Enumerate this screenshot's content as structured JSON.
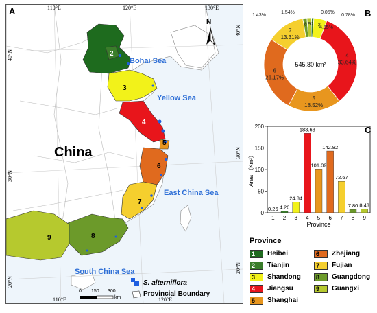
{
  "map": {
    "panel_label": "A",
    "lon_labels": [
      "110°E",
      "120°E",
      "130°E",
      "110°E",
      "120°E"
    ],
    "lat_labels": [
      "40°N",
      "30°N",
      "20°N",
      "40°N",
      "30°N",
      "20°N"
    ],
    "seas": [
      "Bohai Sea",
      "Yellow Sea",
      "East China Sea",
      "South China Sea"
    ],
    "country": "China",
    "north_label": "N",
    "scale": {
      "ticks": [
        "0",
        "150",
        "300"
      ],
      "unit": "km"
    },
    "legend": {
      "species": "S. alterniflora",
      "boundary": "Provincial Boundary"
    },
    "province_numbers": [
      "1",
      "2",
      "3",
      "4",
      "5",
      "6",
      "7",
      "8",
      "9"
    ],
    "colors": {
      "heibei": "#1e6b1e",
      "tianjin": "#3a7d2a",
      "shandong": "#f2f21a",
      "jiangsu": "#e8151b",
      "shanghai": "#e8961e",
      "zhejiang": "#e06a1e",
      "fujian": "#f5cf2e",
      "guangdong": "#6c9a2a",
      "guangxi": "#b6c92e",
      "species": "#1f5fe0",
      "sea_label": "#2f6fd6"
    }
  },
  "donut": {
    "panel_label": "B",
    "center_label": "545.80 km²",
    "slice_labels": [
      {
        "num": "1",
        "pct": "0.05%"
      },
      {
        "num": "2",
        "pct": "0.78%"
      },
      {
        "num": "3",
        "pct": "4.55%"
      },
      {
        "num": "4",
        "pct": "33.64%"
      },
      {
        "num": "5",
        "pct": "18.52%"
      },
      {
        "num": "6",
        "pct": "26.17%"
      },
      {
        "num": "7",
        "pct": "13.31%"
      },
      {
        "num": "8",
        "pct": "1.43%"
      },
      {
        "num": "9",
        "pct": "1.54%"
      }
    ]
  },
  "bars": {
    "panel_label": "C",
    "ylabel": "Area （Km²）",
    "xlabel": "Province"
  },
  "province_legend": {
    "title": "Province",
    "items": [
      {
        "num": "1",
        "name": "Heibei",
        "color": "#1e6b1e"
      },
      {
        "num": "2",
        "name": "Tianjin",
        "color": "#3a7d2a"
      },
      {
        "num": "3",
        "name": "Shandong",
        "color": "#f2f21a"
      },
      {
        "num": "4",
        "name": "Jiangsu",
        "color": "#e8151b"
      },
      {
        "num": "5",
        "name": "Shanghai",
        "color": "#e8961e"
      },
      {
        "num": "6",
        "name": "Zhejiang",
        "color": "#e06a1e"
      },
      {
        "num": "7",
        "name": "Fujian",
        "color": "#f5cf2e"
      },
      {
        "num": "8",
        "name": "Guangdong",
        "color": "#6c9a2a"
      },
      {
        "num": "9",
        "name": "Guangxi",
        "color": "#b6c92e"
      }
    ]
  },
  "chart_data": [
    {
      "type": "pie",
      "categories": [
        "1",
        "2",
        "3",
        "4",
        "5",
        "6",
        "7",
        "8",
        "9"
      ],
      "values": [
        0.05,
        0.78,
        4.55,
        33.64,
        18.52,
        26.17,
        13.31,
        1.43,
        1.54
      ],
      "colors": [
        "#1e6b1e",
        "#3a7d2a",
        "#f2f21a",
        "#e8151b",
        "#e8961e",
        "#e06a1e",
        "#f5cf2e",
        "#6c9a2a",
        "#b6c92e"
      ],
      "title": "",
      "center_label": "545.80 km²"
    },
    {
      "type": "bar",
      "categories": [
        "1",
        "2",
        "3",
        "4",
        "5",
        "6",
        "7",
        "8",
        "9"
      ],
      "values": [
        0.26,
        4.26,
        24.84,
        183.63,
        101.09,
        142.82,
        72.67,
        7.8,
        8.43
      ],
      "value_labels": [
        "0.26",
        "4.26",
        "24.84",
        "183.63",
        "101.09",
        "142.82",
        "72.67",
        "7.80",
        "8.43"
      ],
      "colors": [
        "#1e6b1e",
        "#3a7d2a",
        "#f2f21a",
        "#e8151b",
        "#e8961e",
        "#e06a1e",
        "#f5cf2e",
        "#6c9a2a",
        "#b6c92e"
      ],
      "xlabel": "Province",
      "ylabel": "Area （Km²）",
      "ylim": [
        0,
        200
      ],
      "yticks": [
        "0",
        "50",
        "100",
        "150",
        "200"
      ],
      "grid": false
    }
  ]
}
